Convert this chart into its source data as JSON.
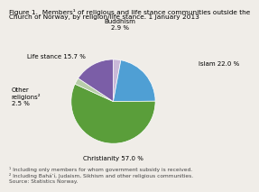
{
  "title_line1": "Figure 1.  Members¹ of religious and life stance communities outside the",
  "title_line2": "Church of Norway, by religion/life stance. 1 January 2013",
  "slices": [
    {
      "label": "Buddhism\n2.9 %",
      "value": 2.9,
      "color": "#c9b8d8"
    },
    {
      "label": "Islam 22.0 %",
      "value": 22.0,
      "color": "#4f9fd4"
    },
    {
      "label": "Christianity 57.0 %",
      "value": 57.0,
      "color": "#5a9e3a"
    },
    {
      "label": "Other\nreligions²\n2.5 %",
      "value": 2.5,
      "color": "#b8ceaa"
    },
    {
      "label": "Life stance 15.7 %",
      "value": 15.7,
      "color": "#7b5ea7"
    }
  ],
  "footnote1": "¹ Including only members for whom government subsidy is received.",
  "footnote2": "² Including Baháʼí, Judaism, Sikhism and other religious communities.",
  "footnote3": "Source: Statistics Norway.",
  "bg_color": "#f0ede8",
  "label_fontsize": 5.0,
  "title_fontsize": 5.3,
  "footnote_fontsize": 4.2
}
